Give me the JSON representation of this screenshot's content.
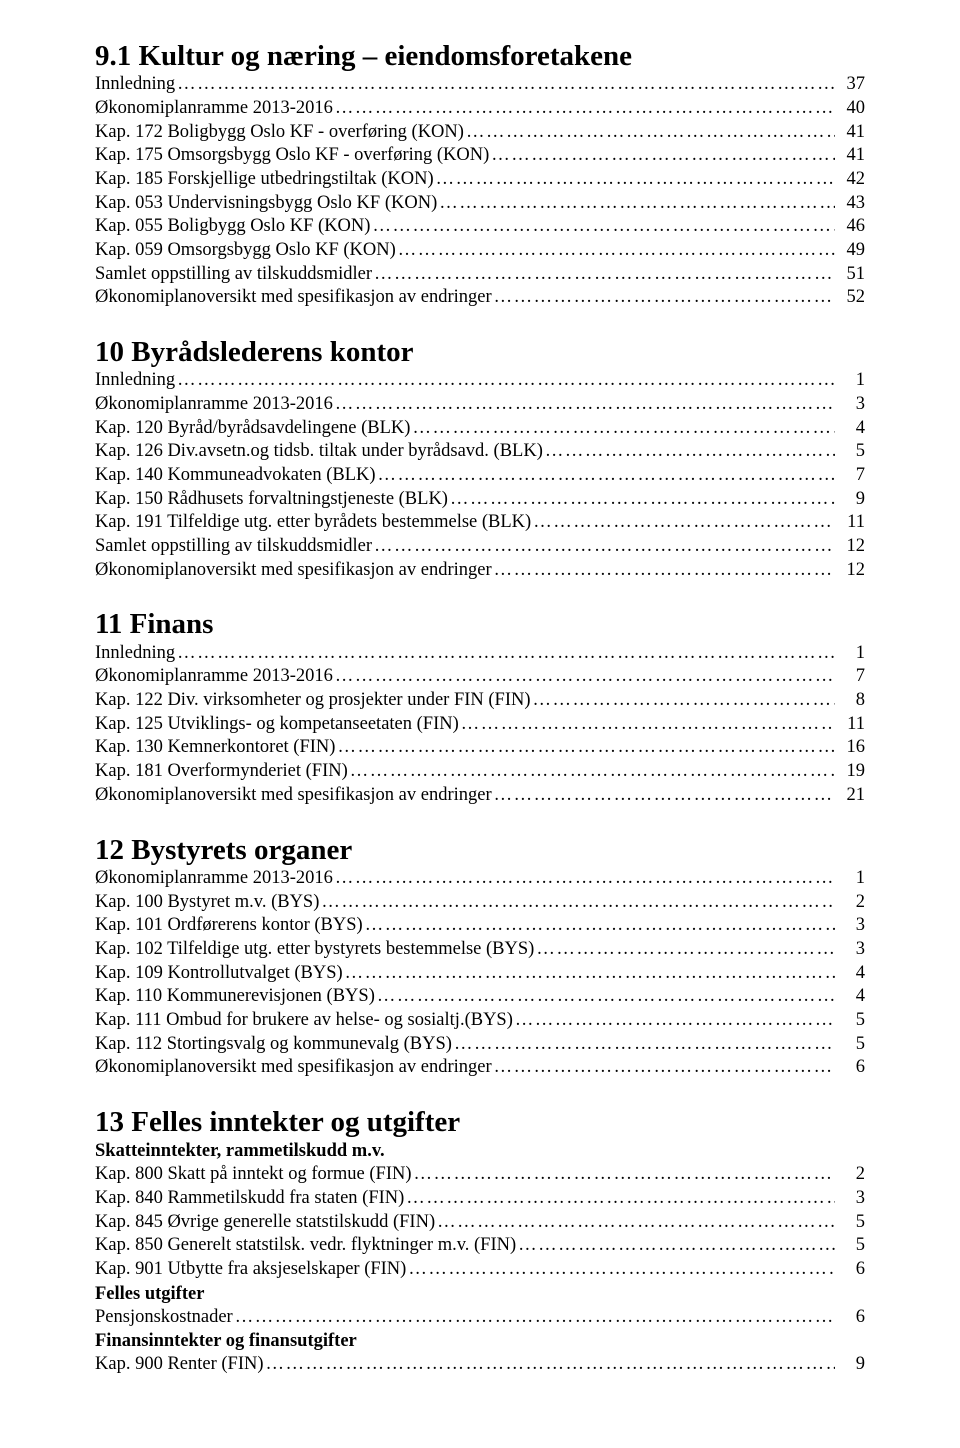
{
  "dots": "………………………………………………………………………………………………………………………………………………",
  "sections": {
    "s91": {
      "title": "9.1 Kultur og næring – eiendomsforetakene",
      "rows": [
        {
          "label": "Innledning",
          "page": "37"
        },
        {
          "label": "Økonomiplanramme 2013-2016",
          "page": "40"
        },
        {
          "label": "Kap. 172 Boligbygg Oslo KF - overføring (KON)",
          "page": "41"
        },
        {
          "label": "Kap. 175 Omsorgsbygg Oslo KF - overføring (KON)",
          "page": "41"
        },
        {
          "label": "Kap. 185 Forskjellige utbedringstiltak (KON)",
          "page": "42"
        },
        {
          "label": "Kap. 053 Undervisningsbygg Oslo KF (KON)",
          "page": "43"
        },
        {
          "label": "Kap. 055 Boligbygg Oslo KF (KON)",
          "page": "46"
        },
        {
          "label": "Kap. 059 Omsorgsbygg Oslo KF (KON)",
          "page": "49"
        },
        {
          "label": "Samlet oppstilling av tilskuddsmidler",
          "page": "51"
        },
        {
          "label": "Økonomiplanoversikt med spesifikasjon av endringer",
          "page": "52"
        }
      ]
    },
    "s10": {
      "title": "10  Byrådslederens kontor",
      "rows": [
        {
          "label": "Innledning",
          "page": "1"
        },
        {
          "label": "Økonomiplanramme 2013-2016",
          "page": "3"
        },
        {
          "label": "Kap. 120 Byråd/byrådsavdelingene (BLK)",
          "page": "4"
        },
        {
          "label": "Kap. 126 Div.avsetn.og tidsb. tiltak under byrådsavd. (BLK)",
          "page": "5"
        },
        {
          "label": "Kap. 140 Kommuneadvokaten (BLK)",
          "page": "7"
        },
        {
          "label": "Kap. 150 Rådhusets forvaltningstjeneste (BLK)",
          "page": "9"
        },
        {
          "label": "Kap. 191 Tilfeldige utg. etter byrådets bestemmelse (BLK)",
          "page": "11"
        },
        {
          "label": "Samlet oppstilling av tilskuddsmidler",
          "page": "12"
        },
        {
          "label": "Økonomiplanoversikt med spesifikasjon av endringer",
          "page": "12"
        }
      ]
    },
    "s11": {
      "title": "11  Finans",
      "rows": [
        {
          "label": "Innledning",
          "page": "1"
        },
        {
          "label": "Økonomiplanramme 2013-2016",
          "page": "7"
        },
        {
          "label": "Kap. 122 Div. virksomheter og prosjekter under FIN (FIN)",
          "page": "8"
        },
        {
          "label": "Kap. 125 Utviklings- og kompetanseetaten (FIN)",
          "page": "11"
        },
        {
          "label": "Kap. 130 Kemnerkontoret (FIN)",
          "page": "16"
        },
        {
          "label": "Kap. 181 Overformynderiet (FIN)",
          "page": "19"
        },
        {
          "label": "Økonomiplanoversikt med spesifikasjon av endringer",
          "page": "21"
        }
      ]
    },
    "s12": {
      "title": "12  Bystyrets organer",
      "rows": [
        {
          "label": "Økonomiplanramme 2013-2016",
          "page": "1"
        },
        {
          "label": "Kap. 100 Bystyret m.v. (BYS)",
          "page": "2"
        },
        {
          "label": "Kap. 101 Ordførerens kontor (BYS)",
          "page": "3"
        },
        {
          "label": "Kap. 102 Tilfeldige utg. etter bystyrets bestemmelse (BYS)",
          "page": "3"
        },
        {
          "label": "Kap. 109 Kontrollutvalget (BYS)",
          "page": "4"
        },
        {
          "label": "Kap. 110 Kommunerevisjonen (BYS)",
          "page": "4"
        },
        {
          "label": "Kap. 111 Ombud for brukere av helse- og sosialtj.(BYS)",
          "page": "5"
        },
        {
          "label": "Kap. 112 Stortingsvalg og kommunevalg (BYS)",
          "page": "5"
        },
        {
          "label": "Økonomiplanoversikt med spesifikasjon av endringer",
          "page": "6"
        }
      ]
    },
    "s13": {
      "title": "13  Felles inntekter og utgifter",
      "sub1": "Skatteinntekter, rammetilskudd m.v.",
      "rows1": [
        {
          "label": "Kap. 800 Skatt på inntekt og formue (FIN)",
          "page": "2"
        },
        {
          "label": "Kap. 840 Rammetilskudd fra staten (FIN)",
          "page": "3"
        },
        {
          "label": "Kap. 845 Øvrige generelle statstilskudd (FIN)",
          "page": "5"
        },
        {
          "label": "Kap. 850 Generelt statstilsk. vedr. flyktninger m.v. (FIN)",
          "page": "5"
        },
        {
          "label": "Kap. 901 Utbytte fra aksjeselskaper (FIN)",
          "page": "6"
        }
      ],
      "sub2": "Felles utgifter",
      "rows2": [
        {
          "label": "Pensjonskostnader",
          "page": "6"
        }
      ],
      "sub3": "Finansinntekter og finansutgifter",
      "rows3": [
        {
          "label": "Kap. 900 Renter (FIN)",
          "page": "9"
        }
      ]
    }
  }
}
